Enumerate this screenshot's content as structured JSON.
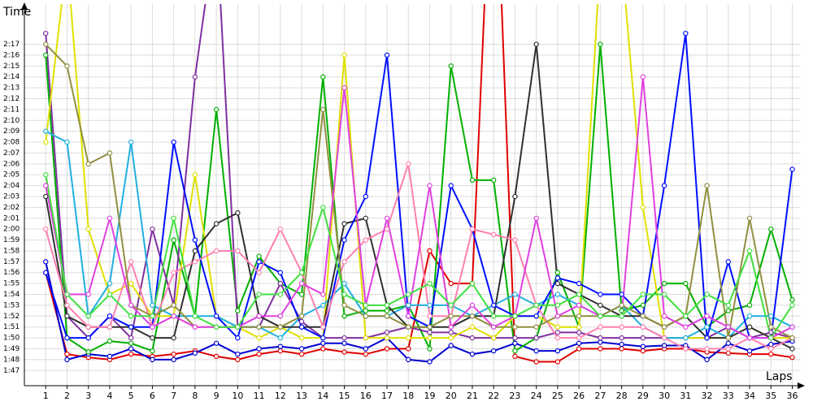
{
  "chart_data": {
    "type": "line",
    "y_label": "Time",
    "x_label": "Laps",
    "x": [
      1,
      2,
      3,
      4,
      5,
      6,
      7,
      8,
      9,
      10,
      11,
      12,
      13,
      14,
      15,
      16,
      17,
      18,
      19,
      20,
      21,
      22,
      23,
      24,
      25,
      26,
      27,
      28,
      29,
      30,
      31,
      32,
      33,
      34,
      35,
      36
    ],
    "xlim": [
      0,
      36.4
    ],
    "xticks": [
      1,
      2,
      3,
      4,
      5,
      6,
      7,
      8,
      9,
      10,
      11,
      12,
      13,
      14,
      15,
      16,
      17,
      18,
      19,
      20,
      21,
      22,
      23,
      24,
      25,
      26,
      27,
      28,
      29,
      30,
      31,
      32,
      33,
      34,
      35,
      36
    ],
    "ylim": [
      105.6,
      140.7
    ],
    "yticks": [
      {
        "value": 107,
        "label": "1:47"
      },
      {
        "value": 108,
        "label": "1:48"
      },
      {
        "value": 109,
        "label": "1:49"
      },
      {
        "value": 110,
        "label": "1:50"
      },
      {
        "value": 111,
        "label": "1:51"
      },
      {
        "value": 112,
        "label": "1:52"
      },
      {
        "value": 113,
        "label": "1:53"
      },
      {
        "value": 114,
        "label": "1:54"
      },
      {
        "value": 115,
        "label": "1:55"
      },
      {
        "value": 116,
        "label": "1:56"
      },
      {
        "value": 117,
        "label": "1:57"
      },
      {
        "value": 118,
        "label": "1:58"
      },
      {
        "value": 119,
        "label": "1:59"
      },
      {
        "value": 120,
        "label": "2:00"
      },
      {
        "value": 121,
        "label": "2:01"
      },
      {
        "value": 122,
        "label": "2:02"
      },
      {
        "value": 123,
        "label": "2:03"
      },
      {
        "value": 124,
        "label": "2:04"
      },
      {
        "value": 125,
        "label": "2:05"
      },
      {
        "value": 126,
        "label": "2:06"
      },
      {
        "value": 127,
        "label": "2:07"
      },
      {
        "value": 128,
        "label": "2:08"
      },
      {
        "value": 129,
        "label": "2:09"
      },
      {
        "value": 130,
        "label": "2:10"
      },
      {
        "value": 131,
        "label": "2:11"
      },
      {
        "value": 132,
        "label": "2:12"
      },
      {
        "value": 133,
        "label": "2:13"
      },
      {
        "value": 134,
        "label": "2:14"
      },
      {
        "value": 135,
        "label": "2:15"
      },
      {
        "value": 136,
        "label": "2:16"
      },
      {
        "value": 137,
        "label": "2:17"
      }
    ],
    "grid": true,
    "series": [
      {
        "color": "#e00000",
        "values": [
          116,
          108.5,
          108.2,
          108,
          108.5,
          108.3,
          108.5,
          108.8,
          108.3,
          108,
          108.5,
          108.8,
          108.5,
          109,
          108.7,
          108.5,
          109,
          109,
          118,
          115,
          115,
          160,
          108.3,
          107.8,
          107.8,
          109,
          109,
          109,
          108.8,
          109,
          109,
          108.7,
          108.6,
          108.5,
          108.5,
          108.2
        ]
      },
      {
        "color": "#0000d0",
        "values": [
          117,
          108,
          108.5,
          108.3,
          109,
          108,
          108,
          108.6,
          109.5,
          108.5,
          109,
          109.2,
          109,
          109.5,
          109.5,
          109,
          110,
          108,
          107.8,
          109.3,
          108.5,
          108.8,
          109.5,
          108.8,
          108.8,
          109.5,
          109.6,
          109.4,
          109.2,
          109.3,
          109.3,
          108,
          109.5,
          108.8,
          109.4,
          109.7
        ]
      },
      {
        "color": "#00b000",
        "values": [
          136,
          110,
          108.7,
          109.7,
          109.5,
          108.8,
          119,
          112,
          131,
          112.5,
          117.5,
          115,
          114,
          134,
          112,
          112.5,
          112.5,
          113,
          109,
          135,
          124.5,
          124.5,
          108.8,
          110,
          116,
          111,
          137,
          112.5,
          113,
          115,
          115,
          111,
          112.5,
          113,
          120,
          113.5
        ]
      },
      {
        "color": "#8030a0",
        "values": [
          138,
          112,
          110,
          112,
          110,
          120,
          113,
          134,
          148,
          111,
          111,
          115,
          111.5,
          110,
          110,
          110,
          110.5,
          111,
          110.5,
          110.5,
          110,
          110,
          110,
          110,
          110.5,
          110.5,
          110,
          110,
          110,
          110,
          110,
          110,
          111,
          110,
          110.5,
          110
        ]
      },
      {
        "color": "#e0e000",
        "values": [
          128,
          145,
          120,
          114,
          115,
          112,
          112,
          125,
          112,
          111,
          110,
          111,
          110,
          110,
          136,
          110,
          110,
          110,
          110,
          110,
          111,
          110,
          112,
          112,
          111,
          111,
          145,
          145,
          122,
          110,
          110,
          110,
          110,
          111,
          110,
          110
        ]
      },
      {
        "color": "#20b0e0",
        "values": [
          129,
          128,
          112,
          115,
          128,
          113,
          112,
          112,
          112,
          111,
          111,
          110,
          112,
          113,
          115,
          112,
          112,
          113,
          113,
          113,
          112,
          113,
          114,
          113,
          114,
          113,
          112,
          113,
          111,
          110,
          110,
          111,
          110,
          112,
          112,
          111
        ]
      },
      {
        "color": "#303030",
        "values": [
          123,
          112,
          111,
          111,
          111,
          110,
          110,
          118,
          120.5,
          121.5,
          112,
          111,
          111,
          111,
          120.5,
          121,
          113,
          111,
          111,
          111,
          112,
          112,
          123,
          137,
          115,
          114,
          113,
          112,
          112,
          111,
          112,
          110,
          110,
          111,
          110,
          109
        ]
      },
      {
        "color": "#0010ff",
        "values": [
          116,
          110,
          110,
          112,
          111,
          111,
          128,
          119,
          112,
          110,
          117,
          116,
          111,
          110,
          119,
          123,
          136,
          112,
          111,
          124,
          120,
          113,
          112,
          112,
          115.5,
          115,
          114,
          114,
          112,
          124,
          138,
          110,
          117,
          110,
          110,
          125.5
        ]
      },
      {
        "color": "#ff80b0",
        "values": [
          120,
          113,
          111,
          111,
          117,
          111,
          116,
          117,
          118,
          118,
          116,
          120,
          116,
          111,
          117,
          119,
          120,
          126,
          112,
          112,
          120,
          119.5,
          119,
          113,
          110,
          110,
          111,
          111,
          111,
          110,
          109,
          109,
          109,
          110,
          109,
          110
        ]
      },
      {
        "color": "#909040",
        "values": [
          137,
          135,
          126,
          127,
          113,
          112,
          113,
          111,
          111,
          111,
          111,
          111,
          112,
          131,
          113,
          112,
          112,
          111,
          111,
          112,
          112,
          111,
          111,
          111,
          112,
          112,
          112,
          113,
          112,
          111,
          112,
          124,
          110,
          121,
          111,
          110
        ]
      },
      {
        "color": "#e040e0",
        "values": [
          124,
          114,
          114,
          121,
          113,
          111,
          112,
          111,
          111,
          111,
          112,
          112,
          115,
          114,
          133,
          113,
          121,
          112,
          124,
          111,
          113,
          111,
          112,
          121,
          112,
          113,
          112,
          112,
          134,
          112,
          111,
          112,
          111,
          110,
          110,
          111
        ]
      },
      {
        "color": "#40e040",
        "values": [
          125,
          114,
          112,
          114,
          112,
          112,
          121,
          112,
          111,
          111,
          114,
          114,
          116,
          122,
          114,
          113,
          113,
          114,
          115,
          113,
          115,
          112,
          112,
          113,
          113,
          114,
          112,
          112,
          114,
          114,
          112,
          114,
          113,
          118,
          110,
          113
        ]
      }
    ]
  }
}
